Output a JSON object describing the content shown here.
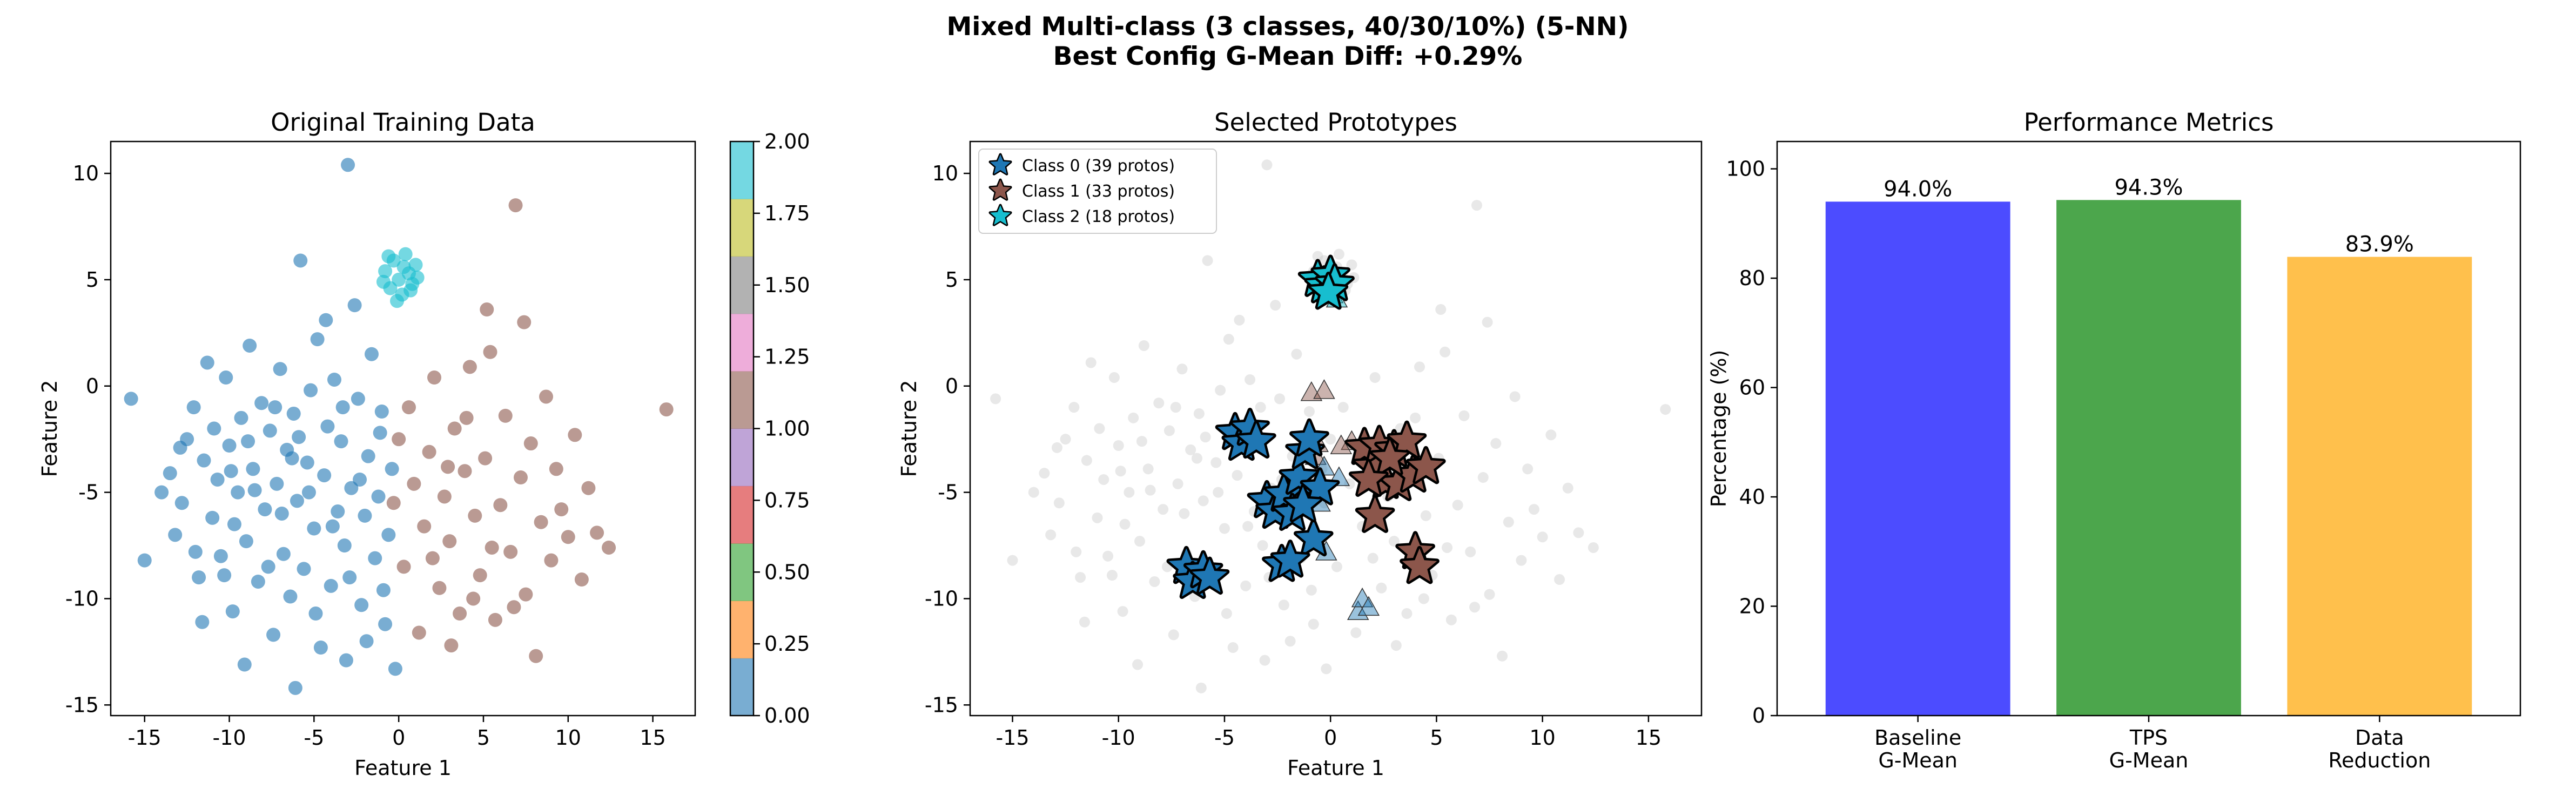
{
  "figure": {
    "title_line1": "Mixed Multi-class (3 classes, 40/30/10%) (5-NN)",
    "title_line2": "Best Config G-Mean Diff: +0.29%"
  },
  "colors": {
    "class0": "#1f77b4",
    "class1": "#8c564b",
    "class2": "#17becf",
    "background_points": "#cccccc",
    "baseline_bar": "#0000ff",
    "tps_bar": "#008000",
    "reduction_bar": "#ffa500",
    "colorbar_tab10": [
      "#1f77b4",
      "#ff7f0e",
      "#2ca02c",
      "#d62728",
      "#9467bd",
      "#8c564b",
      "#e377c2",
      "#7f7f7f",
      "#bcbd22",
      "#17becf"
    ]
  },
  "chart_data": [
    {
      "type": "scatter",
      "title": "Original Training Data",
      "xlabel": "Feature 1",
      "ylabel": "Feature 2",
      "xlim": [
        -17,
        17.5
      ],
      "ylim": [
        -15.5,
        11.5
      ],
      "xticks": [
        -15,
        -10,
        -5,
        0,
        5,
        10,
        15
      ],
      "yticks": [
        -15,
        -10,
        -5,
        0,
        5,
        10
      ],
      "grid": false,
      "colorbar": {
        "range": [
          0.0,
          2.0
        ],
        "ticks": [
          "0.00",
          "0.25",
          "0.50",
          "0.75",
          "1.00",
          "1.25",
          "1.50",
          "1.75",
          "2.00"
        ],
        "colormap": "tab10"
      },
      "series": [
        {
          "class_value": 0,
          "points": [
            [
              -15.8,
              -0.6
            ],
            [
              -15.0,
              -8.2
            ],
            [
              -13.5,
              -4.1
            ],
            [
              -13.2,
              -7.0
            ],
            [
              -12.8,
              -5.5
            ],
            [
              -12.5,
              -2.5
            ],
            [
              -12.1,
              -1.0
            ],
            [
              -11.8,
              -9.0
            ],
            [
              -11.5,
              -3.5
            ],
            [
              -11.3,
              1.1
            ],
            [
              -11.0,
              -6.2
            ],
            [
              -10.7,
              -4.4
            ],
            [
              -10.5,
              -8.0
            ],
            [
              -10.2,
              0.4
            ],
            [
              -10.0,
              -2.8
            ],
            [
              -9.8,
              -10.6
            ],
            [
              -9.5,
              -5.0
            ],
            [
              -9.3,
              -1.5
            ],
            [
              -9.0,
              -7.3
            ],
            [
              -8.8,
              1.9
            ],
            [
              -8.6,
              -3.9
            ],
            [
              -8.3,
              -9.2
            ],
            [
              -8.1,
              -0.8
            ],
            [
              -7.9,
              -5.8
            ],
            [
              -7.6,
              -2.1
            ],
            [
              -7.4,
              -11.7
            ],
            [
              -7.2,
              -4.6
            ],
            [
              -7.0,
              0.8
            ],
            [
              -6.8,
              -7.9
            ],
            [
              -6.6,
              -3.0
            ],
            [
              -6.4,
              -9.9
            ],
            [
              -6.2,
              -1.3
            ],
            [
              -6.0,
              -5.4
            ],
            [
              -5.8,
              5.9
            ],
            [
              -5.6,
              -8.6
            ],
            [
              -5.4,
              -3.6
            ],
            [
              -5.2,
              -0.2
            ],
            [
              -5.0,
              -6.7
            ],
            [
              -4.8,
              2.2
            ],
            [
              -4.6,
              -12.3
            ],
            [
              -4.4,
              -4.2
            ],
            [
              -4.2,
              -1.9
            ],
            [
              -4.0,
              -9.4
            ],
            [
              -3.8,
              0.3
            ],
            [
              -3.6,
              -5.9
            ],
            [
              -3.4,
              -2.6
            ],
            [
              -3.2,
              -7.5
            ],
            [
              -3.0,
              10.4
            ],
            [
              -2.8,
              -4.8
            ],
            [
              -2.6,
              3.8
            ],
            [
              -2.4,
              -0.6
            ],
            [
              -2.2,
              -10.3
            ],
            [
              -2.0,
              -6.1
            ],
            [
              -1.8,
              -3.3
            ],
            [
              -1.6,
              1.5
            ],
            [
              -1.4,
              -8.1
            ],
            [
              -1.2,
              -5.2
            ],
            [
              -1.0,
              -1.2
            ],
            [
              -0.8,
              -11.2
            ],
            [
              -0.6,
              -7.0
            ],
            [
              -0.4,
              -3.9
            ],
            [
              -0.2,
              -13.3
            ],
            [
              -14.0,
              -5.0
            ],
            [
              -12.0,
              -7.8
            ],
            [
              -10.9,
              -2.0
            ],
            [
              -9.7,
              -6.5
            ],
            [
              -8.5,
              -4.9
            ],
            [
              -7.7,
              -8.5
            ],
            [
              -6.9,
              -6.0
            ],
            [
              -5.9,
              -2.4
            ],
            [
              -4.9,
              -10.7
            ],
            [
              -3.9,
              -6.6
            ],
            [
              -2.9,
              -9.0
            ],
            [
              -1.9,
              -12.0
            ],
            [
              -0.9,
              -9.6
            ],
            [
              -3.3,
              -1.0
            ],
            [
              -4.3,
              3.1
            ],
            [
              -6.3,
              -3.4
            ],
            [
              -8.9,
              -2.6
            ],
            [
              -10.3,
              -8.9
            ],
            [
              -11.6,
              -11.1
            ],
            [
              -9.1,
              -13.1
            ],
            [
              -6.1,
              -14.2
            ],
            [
              -3.1,
              -12.9
            ],
            [
              -1.1,
              -2.2
            ],
            [
              -2.3,
              -4.4
            ],
            [
              -5.3,
              -5.0
            ],
            [
              -7.3,
              -1.0
            ],
            [
              -9.9,
              -4.0
            ],
            [
              -12.9,
              -2.9
            ]
          ]
        },
        {
          "class_value": 1,
          "points": [
            [
              -0.3,
              -5.5
            ],
            [
              0.0,
              -2.5
            ],
            [
              0.3,
              -8.5
            ],
            [
              0.6,
              -1.0
            ],
            [
              0.9,
              -4.6
            ],
            [
              1.2,
              -11.6
            ],
            [
              1.5,
              -6.6
            ],
            [
              1.8,
              -3.1
            ],
            [
              2.1,
              0.4
            ],
            [
              2.4,
              -9.5
            ],
            [
              2.7,
              -5.2
            ],
            [
              3.0,
              -7.3
            ],
            [
              3.3,
              -2.0
            ],
            [
              3.6,
              -10.7
            ],
            [
              3.9,
              -4.0
            ],
            [
              4.2,
              0.9
            ],
            [
              4.5,
              -6.1
            ],
            [
              4.8,
              -8.9
            ],
            [
              5.1,
              -3.4
            ],
            [
              5.4,
              1.6
            ],
            [
              5.7,
              -11.0
            ],
            [
              6.0,
              -5.6
            ],
            [
              6.3,
              -1.4
            ],
            [
              6.6,
              -7.8
            ],
            [
              6.9,
              8.5
            ],
            [
              7.2,
              -4.3
            ],
            [
              7.5,
              -9.8
            ],
            [
              7.8,
              -2.7
            ],
            [
              8.1,
              -12.7
            ],
            [
              8.4,
              -6.4
            ],
            [
              8.7,
              -0.5
            ],
            [
              9.0,
              -8.2
            ],
            [
              9.3,
              -3.9
            ],
            [
              9.6,
              -5.8
            ],
            [
              10.0,
              -7.1
            ],
            [
              10.4,
              -2.3
            ],
            [
              10.8,
              -9.1
            ],
            [
              11.2,
              -4.8
            ],
            [
              11.7,
              -6.9
            ],
            [
              12.4,
              -7.6
            ],
            [
              15.8,
              -1.1
            ],
            [
              2.0,
              -8.1
            ],
            [
              3.1,
              -12.2
            ],
            [
              4.4,
              -10.0
            ],
            [
              5.5,
              -7.6
            ],
            [
              6.8,
              -10.4
            ],
            [
              7.4,
              3.0
            ],
            [
              5.2,
              3.6
            ],
            [
              4.0,
              -1.5
            ],
            [
              2.9,
              -3.8
            ]
          ]
        },
        {
          "class_value": 2,
          "points": [
            [
              -0.8,
              5.4
            ],
            [
              -0.5,
              4.6
            ],
            [
              -0.3,
              5.9
            ],
            [
              0.0,
              5.0
            ],
            [
              0.2,
              4.3
            ],
            [
              0.4,
              6.2
            ],
            [
              0.6,
              5.3
            ],
            [
              0.8,
              4.8
            ],
            [
              1.0,
              5.7
            ],
            [
              -0.6,
              6.1
            ],
            [
              -0.1,
              4.0
            ],
            [
              0.3,
              5.6
            ],
            [
              0.7,
              4.5
            ],
            [
              -0.9,
              4.9
            ],
            [
              1.1,
              5.1
            ]
          ]
        }
      ]
    },
    {
      "type": "scatter",
      "title": "Selected Prototypes",
      "xlabel": "Feature 1",
      "ylabel": "Feature 2",
      "xlim": [
        -17,
        17.5
      ],
      "ylim": [
        -15.5,
        11.5
      ],
      "xticks": [
        -15,
        -10,
        -5,
        0,
        5,
        10,
        15
      ],
      "yticks": [
        -15,
        -10,
        -5,
        0,
        5,
        10
      ],
      "grid": false,
      "legend": {
        "placement": "upper-left",
        "entries": [
          "Class 0 (39 protos)",
          "Class 1 (33 protos)",
          "Class 2 (18 protos)"
        ]
      },
      "prototypes": [
        {
          "name": "Class 0 (39 protos)",
          "class_value": 0,
          "points": [
            [
              -6.8,
              -8.5
            ],
            [
              -6.5,
              -9.2
            ],
            [
              -6.0,
              -8.7
            ],
            [
              -5.7,
              -9.0
            ],
            [
              -4.5,
              -2.2
            ],
            [
              -4.2,
              -2.7
            ],
            [
              -3.8,
              -2.0
            ],
            [
              -3.5,
              -2.6
            ],
            [
              -3.0,
              -5.4
            ],
            [
              -2.6,
              -5.9
            ],
            [
              -2.2,
              -5.1
            ],
            [
              -1.8,
              -6.0
            ],
            [
              -1.5,
              -4.3
            ],
            [
              -1.2,
              -3.1
            ],
            [
              -1.0,
              -2.5
            ],
            [
              -0.8,
              -7.2
            ],
            [
              -2.3,
              -8.4
            ],
            [
              -1.9,
              -8.2
            ],
            [
              -0.5,
              -4.8
            ],
            [
              -1.3,
              -5.6
            ]
          ]
        },
        {
          "name": "Class 1 (33 protos)",
          "class_value": 1,
          "points": [
            [
              1.6,
              -2.9
            ],
            [
              2.0,
              -3.8
            ],
            [
              2.3,
              -2.8
            ],
            [
              2.6,
              -4.5
            ],
            [
              3.0,
              -3.0
            ],
            [
              3.2,
              -4.6
            ],
            [
              3.6,
              -2.6
            ],
            [
              3.9,
              -4.2
            ],
            [
              4.5,
              -3.8
            ],
            [
              2.1,
              -6.1
            ],
            [
              4.0,
              -7.8
            ],
            [
              4.2,
              -8.5
            ],
            [
              2.8,
              -3.4
            ],
            [
              1.8,
              -4.4
            ]
          ]
        },
        {
          "name": "Class 2 (18 protos)",
          "class_value": 2,
          "points": [
            [
              -0.6,
              5.0
            ],
            [
              -0.3,
              4.7
            ],
            [
              0.0,
              5.2
            ],
            [
              0.2,
              4.8
            ],
            [
              -0.1,
              4.4
            ]
          ]
        }
      ],
      "triangles": [
        {
          "class_value": 1,
          "points": [
            [
              -0.9,
              -0.3
            ],
            [
              -0.3,
              -0.2
            ],
            [
              -0.6,
              -2.7
            ],
            [
              1.0,
              -2.6
            ],
            [
              0.5,
              -2.8
            ],
            [
              -0.7,
              -3.3
            ]
          ]
        },
        {
          "class_value": 0,
          "points": [
            [
              -0.3,
              -3.8
            ],
            [
              0.4,
              -4.3
            ],
            [
              -0.5,
              -5.5
            ],
            [
              -0.2,
              -7.8
            ],
            [
              1.3,
              -10.6
            ],
            [
              1.5,
              -10.0
            ],
            [
              1.8,
              -10.4
            ]
          ]
        },
        {
          "class_value": 2,
          "points": [
            [
              0.1,
              4.3
            ],
            [
              0.3,
              4.1
            ]
          ]
        }
      ]
    },
    {
      "type": "bar",
      "title": "Performance Metrics",
      "xlabel": "",
      "ylabel": "Percentage (%)",
      "ylim": [
        0,
        105
      ],
      "yticks": [
        0,
        20,
        40,
        60,
        80,
        100
      ],
      "categories": [
        [
          "Baseline",
          "G-Mean"
        ],
        [
          "TPS",
          "G-Mean"
        ],
        [
          "Data",
          "Reduction"
        ]
      ],
      "values": [
        94.0,
        94.3,
        83.9
      ],
      "value_labels": [
        "94.0%",
        "94.3%",
        "83.9%"
      ]
    }
  ]
}
